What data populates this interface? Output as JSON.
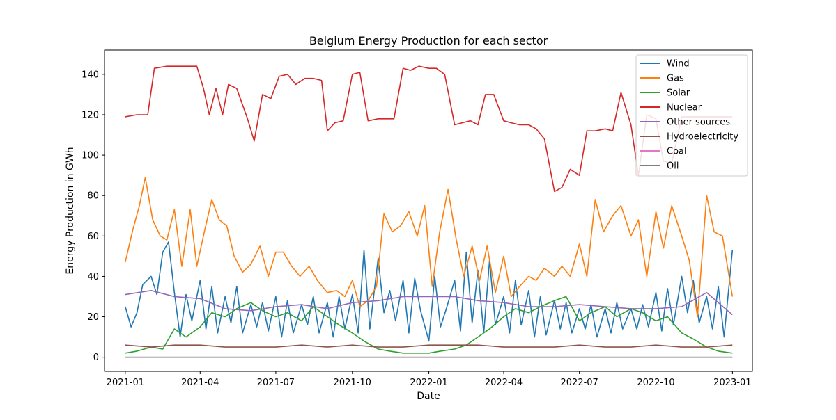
{
  "chart_data": {
    "type": "line",
    "title": "Belgium Energy Production for each sector",
    "xlabel": "Date",
    "ylabel": "Energy Production in GWh",
    "xlim": [
      "2020-12-07",
      "2023-01-25"
    ],
    "ylim": [
      -7,
      152
    ],
    "grid": false,
    "legend_position": "top-right",
    "x_ticks": [
      "2021-01",
      "2021-04",
      "2021-07",
      "2021-10",
      "2022-01",
      "2022-04",
      "2022-07",
      "2022-10",
      "2023-01"
    ],
    "x_tick_dates": [
      "2021-01-01",
      "2021-04-01",
      "2021-07-01",
      "2021-10-01",
      "2022-01-01",
      "2022-04-01",
      "2022-07-01",
      "2022-10-01",
      "2023-01-01"
    ],
    "y_ticks": [
      0,
      20,
      40,
      60,
      80,
      100,
      120,
      140
    ],
    "series": [
      {
        "name": "Wind",
        "color": "#1f77b4",
        "x": [
          "2021-01-01",
          "2021-01-08",
          "2021-01-15",
          "2021-01-22",
          "2021-02-01",
          "2021-02-08",
          "2021-02-15",
          "2021-02-22",
          "2021-03-01",
          "2021-03-08",
          "2021-03-15",
          "2021-03-22",
          "2021-04-01",
          "2021-04-08",
          "2021-04-15",
          "2021-04-22",
          "2021-05-01",
          "2021-05-08",
          "2021-05-15",
          "2021-05-22",
          "2021-06-01",
          "2021-06-08",
          "2021-06-15",
          "2021-06-22",
          "2021-07-01",
          "2021-07-08",
          "2021-07-15",
          "2021-07-22",
          "2021-08-01",
          "2021-08-08",
          "2021-08-15",
          "2021-08-22",
          "2021-09-01",
          "2021-09-08",
          "2021-09-15",
          "2021-09-22",
          "2021-10-01",
          "2021-10-08",
          "2021-10-15",
          "2021-10-22",
          "2021-11-01",
          "2021-11-08",
          "2021-11-15",
          "2021-11-22",
          "2021-12-01",
          "2021-12-08",
          "2021-12-15",
          "2021-12-22",
          "2022-01-01",
          "2022-01-08",
          "2022-01-15",
          "2022-01-22",
          "2022-02-01",
          "2022-02-08",
          "2022-02-15",
          "2022-02-22",
          "2022-03-01",
          "2022-03-08",
          "2022-03-15",
          "2022-03-22",
          "2022-04-01",
          "2022-04-08",
          "2022-04-15",
          "2022-04-22",
          "2022-05-01",
          "2022-05-08",
          "2022-05-15",
          "2022-05-22",
          "2022-06-01",
          "2022-06-08",
          "2022-06-15",
          "2022-06-22",
          "2022-07-01",
          "2022-07-08",
          "2022-07-15",
          "2022-07-22",
          "2022-08-01",
          "2022-08-08",
          "2022-08-15",
          "2022-08-22",
          "2022-09-01",
          "2022-09-08",
          "2022-09-15",
          "2022-09-22",
          "2022-10-01",
          "2022-10-08",
          "2022-10-15",
          "2022-10-22",
          "2022-11-01",
          "2022-11-08",
          "2022-11-15",
          "2022-11-22",
          "2022-12-01",
          "2022-12-08",
          "2022-12-15",
          "2022-12-22",
          "2023-01-01"
        ],
        "y": [
          25,
          15,
          22,
          36,
          40,
          31,
          52,
          57,
          32,
          10,
          31,
          18,
          38,
          14,
          35,
          12,
          30,
          17,
          35,
          12,
          26,
          15,
          27,
          13,
          30,
          10,
          28,
          12,
          26,
          16,
          30,
          12,
          27,
          10,
          30,
          14,
          31,
          12,
          53,
          14,
          49,
          22,
          33,
          18,
          38,
          12,
          39,
          23,
          8,
          40,
          15,
          24,
          38,
          13,
          52,
          17,
          43,
          12,
          48,
          16,
          30,
          12,
          38,
          16,
          33,
          10,
          30,
          11,
          28,
          14,
          27,
          12,
          24,
          14,
          26,
          10,
          24,
          12,
          27,
          14,
          24,
          14,
          26,
          15,
          32,
          13,
          34,
          16,
          40,
          22,
          38,
          17,
          30,
          14,
          35,
          10,
          53
        ]
      },
      {
        "name": "Gas",
        "color": "#ff7f0e",
        "x": [
          "2021-01-01",
          "2021-01-10",
          "2021-01-18",
          "2021-01-25",
          "2021-02-03",
          "2021-02-12",
          "2021-02-20",
          "2021-03-01",
          "2021-03-10",
          "2021-03-20",
          "2021-03-28",
          "2021-04-06",
          "2021-04-15",
          "2021-04-24",
          "2021-05-03",
          "2021-05-12",
          "2021-05-22",
          "2021-06-01",
          "2021-06-12",
          "2021-06-22",
          "2021-07-01",
          "2021-07-10",
          "2021-07-20",
          "2021-07-30",
          "2021-08-10",
          "2021-08-20",
          "2021-09-01",
          "2021-09-12",
          "2021-09-22",
          "2021-10-01",
          "2021-10-10",
          "2021-10-20",
          "2021-10-30",
          "2021-11-08",
          "2021-11-18",
          "2021-11-28",
          "2021-12-08",
          "2021-12-18",
          "2021-12-27",
          "2022-01-05",
          "2022-01-14",
          "2022-01-24",
          "2022-02-03",
          "2022-02-12",
          "2022-02-22",
          "2022-03-03",
          "2022-03-12",
          "2022-03-22",
          "2022-04-01",
          "2022-04-10",
          "2022-04-20",
          "2022-05-01",
          "2022-05-10",
          "2022-05-20",
          "2022-06-01",
          "2022-06-10",
          "2022-06-20",
          "2022-07-01",
          "2022-07-10",
          "2022-07-20",
          "2022-07-30",
          "2022-08-10",
          "2022-08-20",
          "2022-09-01",
          "2022-09-10",
          "2022-09-20",
          "2022-10-01",
          "2022-10-10",
          "2022-10-20",
          "2022-11-01",
          "2022-11-10",
          "2022-11-20",
          "2022-12-01",
          "2022-12-10",
          "2022-12-20",
          "2023-01-01"
        ],
        "y": [
          47,
          63,
          75,
          89,
          68,
          60,
          58,
          73,
          45,
          73,
          45,
          62,
          78,
          68,
          65,
          50,
          42,
          46,
          55,
          40,
          52,
          52,
          45,
          40,
          45,
          38,
          32,
          33,
          30,
          38,
          25,
          28,
          35,
          71,
          62,
          65,
          72,
          60,
          75,
          35,
          62,
          83,
          58,
          40,
          55,
          38,
          55,
          32,
          50,
          30,
          35,
          40,
          38,
          44,
          40,
          45,
          40,
          56,
          40,
          78,
          62,
          70,
          75,
          60,
          68,
          40,
          72,
          54,
          75,
          60,
          48,
          20,
          80,
          62,
          60,
          30
        ]
      },
      {
        "name": "Solar",
        "color": "#2ca02c",
        "x": [
          "2021-01-01",
          "2021-01-15",
          "2021-02-01",
          "2021-02-15",
          "2021-03-01",
          "2021-03-15",
          "2021-04-01",
          "2021-04-15",
          "2021-05-01",
          "2021-05-15",
          "2021-06-01",
          "2021-06-15",
          "2021-07-01",
          "2021-07-15",
          "2021-08-01",
          "2021-08-15",
          "2021-09-01",
          "2021-09-15",
          "2021-10-01",
          "2021-10-15",
          "2021-11-01",
          "2021-11-15",
          "2021-12-01",
          "2021-12-15",
          "2022-01-01",
          "2022-01-15",
          "2022-02-01",
          "2022-02-15",
          "2022-03-01",
          "2022-03-15",
          "2022-04-01",
          "2022-04-15",
          "2022-05-01",
          "2022-05-15",
          "2022-06-01",
          "2022-06-15",
          "2022-07-01",
          "2022-07-15",
          "2022-08-01",
          "2022-08-15",
          "2022-09-01",
          "2022-09-15",
          "2022-10-01",
          "2022-10-15",
          "2022-11-01",
          "2022-11-15",
          "2022-12-01",
          "2022-12-15",
          "2023-01-01"
        ],
        "y": [
          2,
          3,
          5,
          4,
          14,
          10,
          15,
          22,
          20,
          24,
          27,
          23,
          20,
          22,
          18,
          25,
          20,
          16,
          12,
          8,
          4,
          3,
          2,
          2,
          2,
          3,
          4,
          6,
          10,
          14,
          20,
          24,
          22,
          25,
          28,
          30,
          18,
          22,
          25,
          20,
          24,
          22,
          18,
          20,
          12,
          9,
          5,
          3,
          2
        ]
      },
      {
        "name": "Nuclear",
        "color": "#d62728",
        "x": [
          "2021-01-01",
          "2021-01-15",
          "2021-01-28",
          "2021-02-05",
          "2021-02-20",
          "2021-03-05",
          "2021-03-15",
          "2021-03-28",
          "2021-04-05",
          "2021-04-12",
          "2021-04-20",
          "2021-04-28",
          "2021-05-05",
          "2021-05-15",
          "2021-05-28",
          "2021-06-05",
          "2021-06-15",
          "2021-06-25",
          "2021-07-05",
          "2021-07-15",
          "2021-07-25",
          "2021-08-05",
          "2021-08-15",
          "2021-08-25",
          "2021-09-01",
          "2021-09-10",
          "2021-09-20",
          "2021-10-01",
          "2021-10-10",
          "2021-10-20",
          "2021-11-01",
          "2021-11-10",
          "2021-11-20",
          "2021-12-01",
          "2021-12-10",
          "2021-12-20",
          "2022-01-01",
          "2022-01-10",
          "2022-01-20",
          "2022-02-01",
          "2022-02-10",
          "2022-02-20",
          "2022-03-01",
          "2022-03-10",
          "2022-03-20",
          "2022-04-01",
          "2022-04-10",
          "2022-04-20",
          "2022-05-01",
          "2022-05-10",
          "2022-05-20",
          "2022-06-01",
          "2022-06-10",
          "2022-06-20",
          "2022-07-01",
          "2022-07-10",
          "2022-07-20",
          "2022-08-01",
          "2022-08-10",
          "2022-08-20",
          "2022-09-01",
          "2022-09-10",
          "2022-09-20",
          "2022-10-01",
          "2022-10-10",
          "2022-10-20",
          "2022-11-01",
          "2022-11-10",
          "2022-11-20",
          "2022-12-01",
          "2022-12-10",
          "2022-12-20",
          "2023-01-01"
        ],
        "y": [
          119,
          120,
          120,
          143,
          144,
          144,
          144,
          144,
          133,
          120,
          133,
          120,
          135,
          133,
          118,
          107,
          130,
          128,
          139,
          140,
          135,
          138,
          138,
          137,
          112,
          116,
          117,
          140,
          141,
          117,
          118,
          118,
          118,
          143,
          142,
          144,
          143,
          143,
          140,
          115,
          116,
          117,
          115,
          130,
          130,
          117,
          116,
          115,
          115,
          113,
          108,
          82,
          84,
          93,
          90,
          112,
          112,
          113,
          112,
          131,
          115,
          90,
          120,
          118,
          97,
          96,
          119,
          119,
          119,
          119,
          119,
          119,
          119
        ]
      },
      {
        "name": "Other sources",
        "color": "#9467bd",
        "x": [
          "2021-01-01",
          "2021-02-01",
          "2021-03-01",
          "2021-04-01",
          "2021-05-01",
          "2021-06-01",
          "2021-07-01",
          "2021-08-01",
          "2021-09-01",
          "2021-10-01",
          "2021-11-01",
          "2021-12-01",
          "2022-01-01",
          "2022-02-01",
          "2022-03-01",
          "2022-04-01",
          "2022-05-01",
          "2022-06-01",
          "2022-07-01",
          "2022-08-01",
          "2022-09-01",
          "2022-10-01",
          "2022-11-01",
          "2022-12-01",
          "2023-01-01"
        ],
        "y": [
          31,
          33,
          30,
          29,
          24,
          23,
          25,
          26,
          24,
          27,
          28,
          30,
          30,
          30,
          28,
          27,
          25,
          25,
          26,
          25,
          24,
          24,
          25,
          32,
          21
        ]
      },
      {
        "name": "Hydroelectricity",
        "color": "#8c564b",
        "x": [
          "2021-01-01",
          "2021-02-01",
          "2021-03-01",
          "2021-04-01",
          "2021-05-01",
          "2021-06-01",
          "2021-07-01",
          "2021-08-01",
          "2021-09-01",
          "2021-10-01",
          "2021-11-01",
          "2021-12-01",
          "2022-01-01",
          "2022-02-01",
          "2022-03-01",
          "2022-04-01",
          "2022-05-01",
          "2022-06-01",
          "2022-07-01",
          "2022-08-01",
          "2022-09-01",
          "2022-10-01",
          "2022-11-01",
          "2022-12-01",
          "2023-01-01"
        ],
        "y": [
          6,
          5,
          6,
          6,
          5,
          5,
          5,
          6,
          5,
          6,
          5,
          5,
          6,
          6,
          6,
          5,
          5,
          5,
          6,
          5,
          5,
          6,
          5,
          5,
          6
        ]
      },
      {
        "name": "Coal",
        "color": "#e377c2",
        "x": [
          "2021-01-01",
          "2023-01-01"
        ],
        "y": [
          0,
          0
        ]
      },
      {
        "name": "Oil",
        "color": "#7f7f7f",
        "x": [
          "2021-01-01",
          "2023-01-01"
        ],
        "y": [
          0,
          0
        ]
      }
    ]
  }
}
